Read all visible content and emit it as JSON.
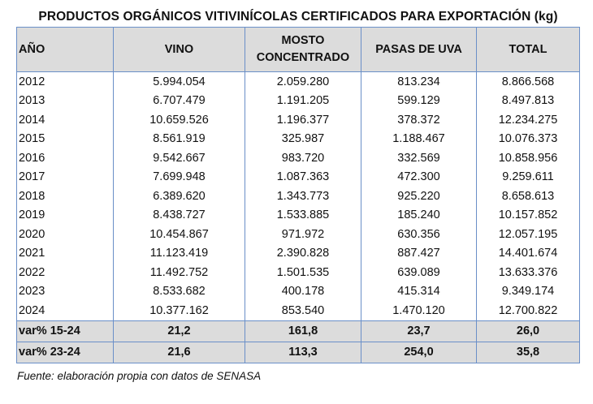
{
  "title": "PRODUCTOS ORGÁNICOS VITIVINÍCOLAS CERTIFICADOS PARA EXPORTACIÓN (kg)",
  "headers": [
    "AÑO",
    "VINO",
    "MOSTO CONCENTRADO",
    "PASAS DE UVA",
    "TOTAL"
  ],
  "header_mosto_lines": [
    "MOSTO",
    "CONCENTRADO"
  ],
  "rows": [
    [
      "2012",
      "5.994.054",
      "2.059.280",
      "813.234",
      "8.866.568"
    ],
    [
      "2013",
      "6.707.479",
      "1.191.205",
      "599.129",
      "8.497.813"
    ],
    [
      "2014",
      "10.659.526",
      "1.196.377",
      "378.372",
      "12.234.275"
    ],
    [
      "2015",
      "8.561.919",
      "325.987",
      "1.188.467",
      "10.076.373"
    ],
    [
      "2016",
      "9.542.667",
      "983.720",
      "332.569",
      "10.858.956"
    ],
    [
      "2017",
      "7.699.948",
      "1.087.363",
      "472.300",
      "9.259.611"
    ],
    [
      "2018",
      "6.389.620",
      "1.343.773",
      "925.220",
      "8.658.613"
    ],
    [
      "2019",
      "8.438.727",
      "1.533.885",
      "185.240",
      "10.157.852"
    ],
    [
      "2020",
      "10.454.867",
      "971.972",
      "630.356",
      "12.057.195"
    ],
    [
      "2021",
      "11.123.419",
      "2.390.828",
      "887.427",
      "14.401.674"
    ],
    [
      "2022",
      "11.492.752",
      "1.501.535",
      "639.089",
      "13.633.376"
    ],
    [
      "2023",
      "8.533.682",
      "400.178",
      "415.314",
      "9.349.174"
    ],
    [
      "2024",
      "10.377.162",
      "853.540",
      "1.470.120",
      "12.700.822"
    ]
  ],
  "variations": [
    [
      "var% 15-24",
      "21,2",
      "161,8",
      "23,7",
      "26,0"
    ],
    [
      "var% 23-24",
      "21,6",
      "113,3",
      "254,0",
      "35,8"
    ]
  ],
  "source": "Fuente: elaboración propia con datos de SENASA"
}
